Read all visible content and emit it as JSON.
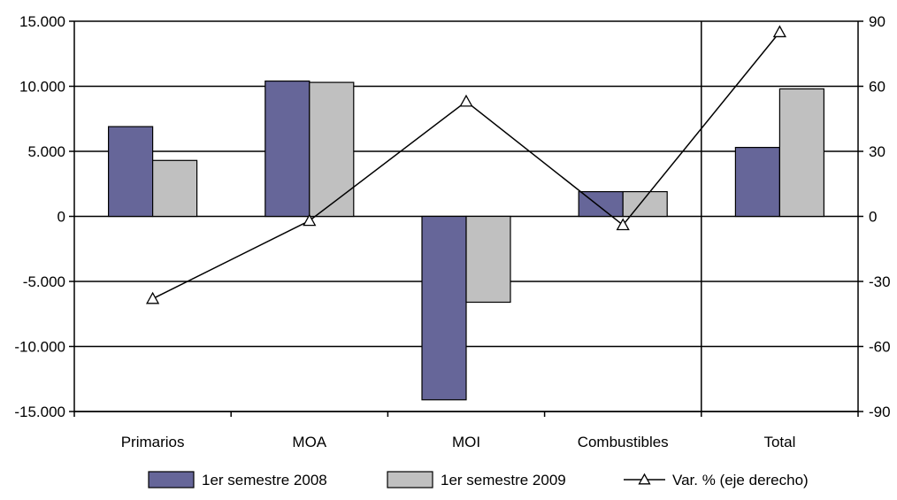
{
  "chart_data": {
    "type": "bar",
    "categories": [
      "Primarios",
      "MOA",
      "MOI",
      "Combustibles",
      "Total"
    ],
    "series": [
      {
        "name": "1er semestre 2008",
        "type": "bar",
        "axis": "left",
        "color": "#666699",
        "values": [
          6900,
          10400,
          -14100,
          1900,
          5300
        ]
      },
      {
        "name": "1er semestre 2009",
        "type": "bar",
        "axis": "left",
        "color": "#c0c0c0",
        "values": [
          4300,
          10300,
          -6600,
          1900,
          9800
        ]
      },
      {
        "name": "Var. % (eje derecho)",
        "type": "line",
        "axis": "right",
        "color": "#000000",
        "marker": "triangle-open",
        "values": [
          -38,
          -2,
          53,
          -4,
          85
        ]
      }
    ],
    "y_left": {
      "ylim": [
        -15000,
        15000
      ],
      "ticks": [
        15000,
        10000,
        5000,
        0,
        -5000,
        -10000,
        -15000
      ],
      "tick_labels": [
        "15.000",
        "10.000",
        "5.000",
        "0",
        "-5.000",
        "-10.000",
        "-15.000"
      ]
    },
    "y_right": {
      "ylim": [
        -90,
        90
      ],
      "ticks": [
        90,
        60,
        30,
        0,
        -30,
        -60,
        -90
      ],
      "tick_labels": [
        "90",
        "60",
        "30",
        "0",
        "-30",
        "-60",
        "-90"
      ]
    },
    "grid": true,
    "separator_before_category": "Total",
    "legend_placement": "bottom-center",
    "title": "",
    "xlabel": "",
    "ylabel": ""
  }
}
